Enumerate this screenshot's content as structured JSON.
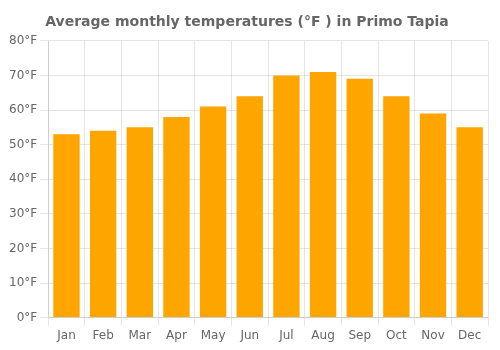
{
  "chart_data": {
    "type": "bar",
    "title": "Average monthly temperatures (°F ) in Primo Tapia",
    "categories": [
      "Jan",
      "Feb",
      "Mar",
      "Apr",
      "May",
      "Jun",
      "Jul",
      "Aug",
      "Sep",
      "Oct",
      "Nov",
      "Dec"
    ],
    "values": [
      53,
      54,
      55,
      58,
      61,
      64,
      70,
      71,
      69,
      64,
      59,
      55
    ],
    "color": "#FFA500",
    "ylim": [
      0,
      80
    ],
    "yticks": [
      {
        "value": 0,
        "label": "0°F"
      },
      {
        "value": 10,
        "label": "10°F"
      },
      {
        "value": 20,
        "label": "20°F"
      },
      {
        "value": 30,
        "label": "30°F"
      },
      {
        "value": 40,
        "label": "40°F"
      },
      {
        "value": 50,
        "label": "50°F"
      },
      {
        "value": 60,
        "label": "60°F"
      },
      {
        "value": 70,
        "label": "70°F"
      },
      {
        "value": 80,
        "label": "80°F"
      }
    ],
    "grid": true
  }
}
